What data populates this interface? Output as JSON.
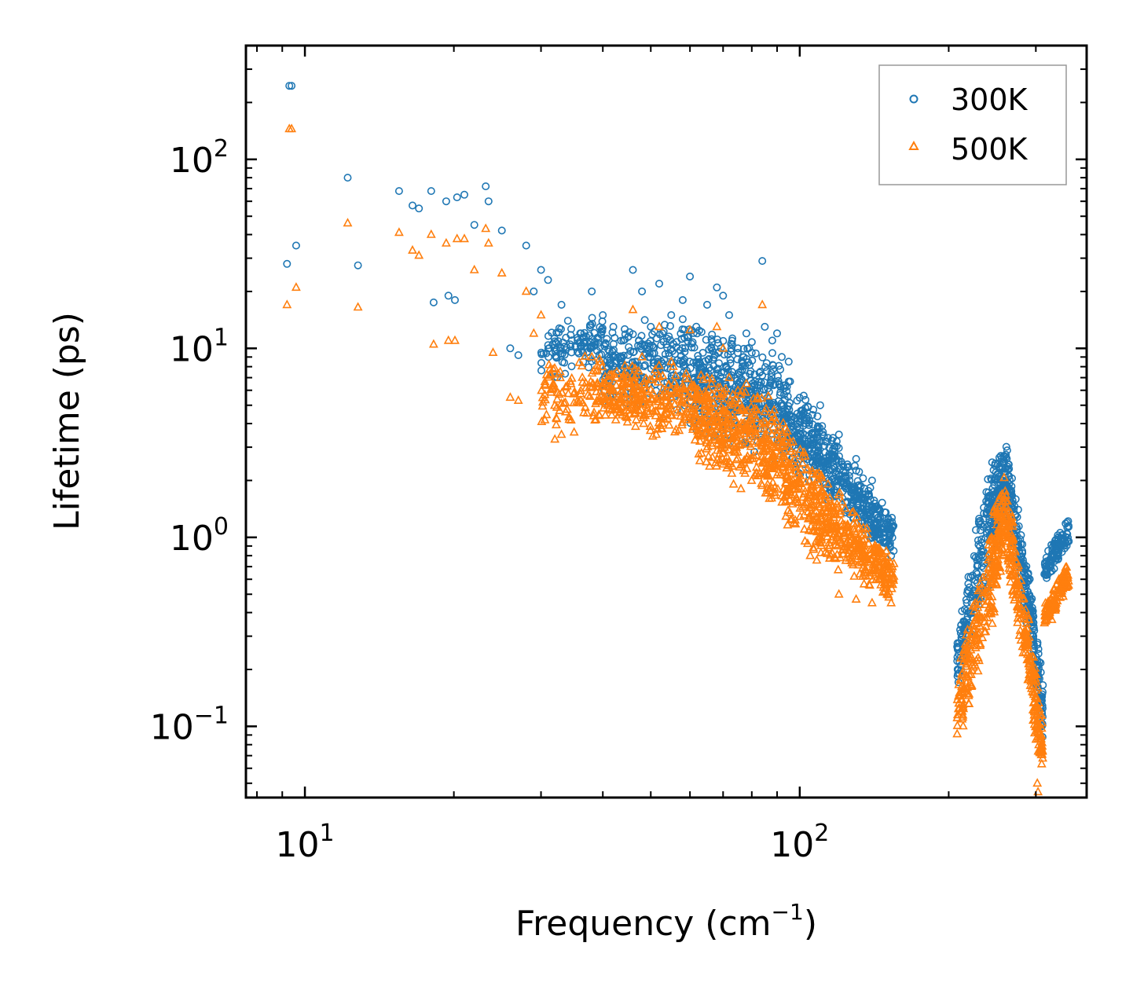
{
  "chart_data": {
    "type": "scatter",
    "xscale": "log",
    "yscale": "log",
    "xlabel": "Frequency (cm",
    "xlabel_sup": "−1",
    "xlabel_close": ")",
    "ylabel": "Lifetime (ps)",
    "xlim": [
      7.6,
      380
    ],
    "ylim": [
      0.042,
      400
    ],
    "x_ticks": [
      {
        "value": 10,
        "base": "10",
        "exp": "1"
      },
      {
        "value": 100,
        "base": "10",
        "exp": "2"
      }
    ],
    "y_ticks": [
      {
        "value": 0.1,
        "base": "10",
        "exp": "−1"
      },
      {
        "value": 1,
        "base": "10",
        "exp": "0"
      },
      {
        "value": 10,
        "base": "10",
        "exp": "1"
      },
      {
        "value": 100,
        "base": "10",
        "exp": "2"
      }
    ],
    "legend": {
      "placement": "top-right",
      "entries": [
        "300K",
        "500K"
      ]
    },
    "series": [
      {
        "name": "300K",
        "marker": "circle",
        "color": "#1f77b4",
        "points": [
          [
            9.3,
            245
          ],
          [
            9.4,
            245
          ],
          [
            9.2,
            28
          ],
          [
            9.6,
            35
          ],
          [
            12.2,
            80
          ],
          [
            12.8,
            27.5
          ],
          [
            15.5,
            68
          ],
          [
            16.5,
            57
          ],
          [
            17,
            55
          ],
          [
            18,
            68
          ],
          [
            18.2,
            17.5
          ],
          [
            19.3,
            60
          ],
          [
            20.3,
            63
          ],
          [
            21,
            65
          ],
          [
            22,
            45
          ],
          [
            23.2,
            72
          ],
          [
            23.5,
            60
          ],
          [
            25,
            42
          ],
          [
            19.5,
            19
          ],
          [
            20.1,
            18
          ],
          [
            26,
            10
          ],
          [
            27,
            9.2
          ],
          [
            28,
            35
          ],
          [
            29,
            20
          ],
          [
            30,
            26
          ],
          [
            31,
            23
          ],
          [
            33,
            17
          ],
          [
            34,
            14
          ],
          [
            36,
            12
          ],
          [
            38,
            20
          ],
          [
            40,
            15
          ],
          [
            42,
            13
          ],
          [
            44,
            11
          ],
          [
            46,
            26
          ],
          [
            48,
            20
          ],
          [
            50,
            13
          ],
          [
            52,
            22
          ],
          [
            55,
            15
          ],
          [
            58,
            18
          ],
          [
            60,
            24
          ],
          [
            62,
            12
          ],
          [
            65,
            17
          ],
          [
            68,
            21
          ],
          [
            70,
            19
          ],
          [
            72,
            15
          ],
          [
            75,
            10
          ],
          [
            78,
            12
          ],
          [
            80,
            9.5
          ],
          [
            84,
            29
          ],
          [
            85,
            13
          ],
          [
            88,
            11
          ],
          [
            90,
            12
          ],
          [
            92,
            9
          ],
          [
            95,
            8.5
          ],
          [
            110,
            5
          ],
          [
            120,
            3.5
          ],
          [
            130,
            2.6
          ],
          [
            140,
            2
          ],
          [
            150,
            1.2
          ],
          [
            153,
            0.8
          ]
        ],
        "bands": [
          {
            "x": [
              30,
              40
            ],
            "lo": [
              6,
              8
            ],
            "hi": [
              14,
              16
            ],
            "n": 110
          },
          {
            "x": [
              40,
              60
            ],
            "lo": [
              5,
              4.5
            ],
            "hi": [
              14,
              15
            ],
            "n": 260
          },
          {
            "x": [
              60,
              85
            ],
            "lo": [
              3.5,
              2.5
            ],
            "hi": [
              15,
              11
            ],
            "n": 340
          },
          {
            "x": [
              85,
              110
            ],
            "lo": [
              2.5,
              1.8
            ],
            "hi": [
              11,
              4.5
            ],
            "n": 260
          },
          {
            "x": [
              110,
              155
            ],
            "lo": [
              1.6,
              0.75
            ],
            "hi": [
              4.5,
              1.3
            ],
            "n": 320
          },
          {
            "x": [
              208,
              240
            ],
            "lo": [
              0.15,
              0.5
            ],
            "hi": [
              0.35,
              2.5
            ],
            "n": 150
          },
          {
            "x": [
              240,
              260
            ],
            "lo": [
              0.5,
              1.2
            ],
            "hi": [
              2.5,
              3.8
            ],
            "n": 140
          },
          {
            "x": [
              260,
              290
            ],
            "lo": [
              1.2,
              0.3
            ],
            "hi": [
              3.8,
              0.7
            ],
            "n": 150
          },
          {
            "x": [
              290,
              310
            ],
            "lo": [
              0.3,
              0.07
            ],
            "hi": [
              0.7,
              0.2
            ],
            "n": 110
          },
          {
            "x": [
              312,
              350
            ],
            "lo": [
              0.55,
              0.9
            ],
            "hi": [
              0.8,
              1.3
            ],
            "n": 110
          }
        ]
      },
      {
        "name": "500K",
        "marker": "triangle",
        "color": "#ff7f0e",
        "points": [
          [
            9.3,
            145
          ],
          [
            9.4,
            145
          ],
          [
            9.2,
            17
          ],
          [
            9.6,
            21
          ],
          [
            12.2,
            46
          ],
          [
            12.8,
            16.5
          ],
          [
            15.5,
            41
          ],
          [
            16.5,
            33
          ],
          [
            17,
            31
          ],
          [
            18,
            40
          ],
          [
            18.2,
            10.5
          ],
          [
            19.3,
            36
          ],
          [
            20.3,
            38
          ],
          [
            21,
            38
          ],
          [
            22,
            26
          ],
          [
            23.2,
            43
          ],
          [
            23.5,
            36
          ],
          [
            25,
            25
          ],
          [
            19.5,
            11
          ],
          [
            20.1,
            11
          ],
          [
            24,
            9.5
          ],
          [
            26,
            5.5
          ],
          [
            27,
            5.3
          ],
          [
            28,
            20
          ],
          [
            29,
            12
          ],
          [
            30,
            15
          ],
          [
            32,
            3.3
          ],
          [
            33,
            3.5
          ],
          [
            35,
            3.6
          ],
          [
            38,
            9
          ],
          [
            40,
            6.5
          ],
          [
            44,
            7.2
          ],
          [
            46,
            16
          ],
          [
            48,
            9
          ],
          [
            52,
            13
          ],
          [
            55,
            8.5
          ],
          [
            60,
            12.5
          ],
          [
            62,
            5.5
          ],
          [
            65,
            7
          ],
          [
            68,
            13
          ],
          [
            70,
            10
          ],
          [
            72,
            7
          ],
          [
            75,
            6
          ],
          [
            78,
            6.5
          ],
          [
            84,
            17
          ],
          [
            85,
            4
          ],
          [
            88,
            4.5
          ],
          [
            90,
            3.5
          ],
          [
            100,
            2
          ],
          [
            105,
            0.8
          ],
          [
            120,
            0.5
          ],
          [
            130,
            0.47
          ],
          [
            140,
            0.45
          ],
          [
            150,
            0.5
          ],
          [
            153,
            0.45
          ],
          [
            302,
            0.05
          ],
          [
            303,
            0.045
          ]
        ],
        "bands": [
          {
            "x": [
              30,
              40
            ],
            "lo": [
              3.5,
              4
            ],
            "hi": [
              9,
              10
            ],
            "n": 110
          },
          {
            "x": [
              40,
              60
            ],
            "lo": [
              4,
              3
            ],
            "hi": [
              9,
              8
            ],
            "n": 260
          },
          {
            "x": [
              60,
              85
            ],
            "lo": [
              2.5,
              1.5
            ],
            "hi": [
              8,
              6
            ],
            "n": 340
          },
          {
            "x": [
              85,
              110
            ],
            "lo": [
              1.4,
              0.7
            ],
            "hi": [
              6,
              2.5
            ],
            "n": 260
          },
          {
            "x": [
              110,
              155
            ],
            "lo": [
              0.7,
              0.45
            ],
            "hi": [
              2.4,
              0.8
            ],
            "n": 320
          },
          {
            "x": [
              208,
              240
            ],
            "lo": [
              0.07,
              0.25
            ],
            "hi": [
              0.2,
              1.2
            ],
            "n": 150
          },
          {
            "x": [
              240,
              260
            ],
            "lo": [
              0.25,
              0.7
            ],
            "hi": [
              1.2,
              2.4
            ],
            "n": 140
          },
          {
            "x": [
              260,
              290
            ],
            "lo": [
              0.7,
              0.15
            ],
            "hi": [
              2.4,
              0.4
            ],
            "n": 150
          },
          {
            "x": [
              290,
              310
            ],
            "lo": [
              0.15,
              0.045
            ],
            "hi": [
              0.4,
              0.12
            ],
            "n": 110
          },
          {
            "x": [
              312,
              350
            ],
            "lo": [
              0.3,
              0.55
            ],
            "hi": [
              0.45,
              0.8
            ],
            "n": 110
          }
        ]
      }
    ]
  }
}
